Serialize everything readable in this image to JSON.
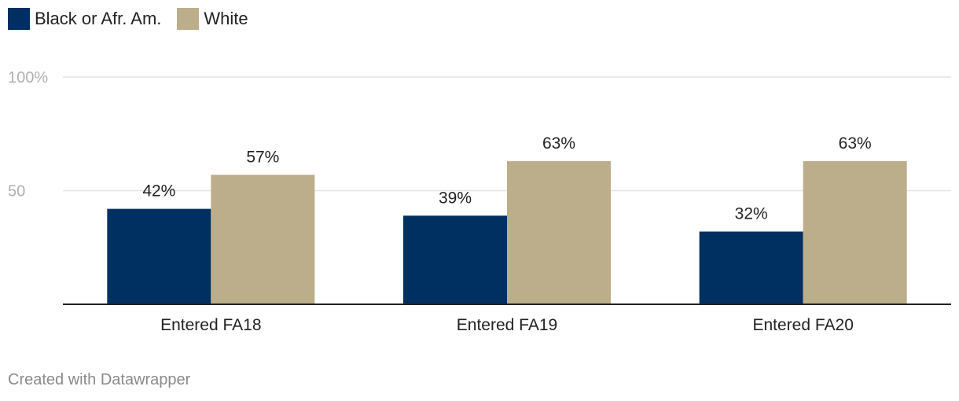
{
  "legend": {
    "items": [
      {
        "label": "Black or Afr. Am.",
        "color": "#002f62"
      },
      {
        "label": "White",
        "color": "#bdae8b"
      }
    ]
  },
  "chart_data": {
    "type": "bar",
    "categories": [
      "Entered FA18",
      "Entered FA19",
      "Entered FA20"
    ],
    "series": [
      {
        "name": "Black or Afr. Am.",
        "values": [
          42,
          39,
          32
        ],
        "labels": [
          "42%",
          "39%",
          "32%"
        ],
        "color": "#002f62"
      },
      {
        "name": "White",
        "values": [
          57,
          63,
          63
        ],
        "labels": [
          "57%",
          "63%",
          "63%"
        ],
        "color": "#bdae8b"
      }
    ],
    "yticks": [
      {
        "value": 100,
        "label": "100%"
      },
      {
        "value": 50,
        "label": "50"
      }
    ],
    "ylim": [
      0,
      100
    ],
    "grid": true,
    "legend_position": "top-left"
  },
  "footer": {
    "credit": "Created with Datawrapper"
  }
}
